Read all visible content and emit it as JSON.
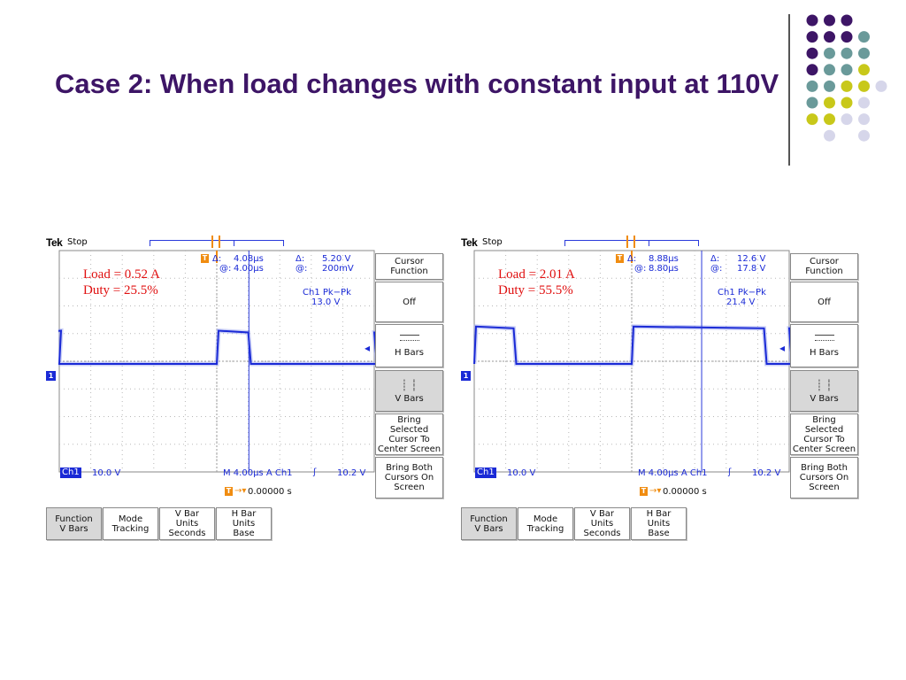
{
  "slide": {
    "title": "Case 2: When load changes with constant input at 110V"
  },
  "colors": {
    "purple": "#3d1566",
    "teal": "#6a9a9a",
    "lime": "#c8c81a",
    "lavender": "#d6d6ea",
    "trace": "#1a2ad6",
    "orange": "#f08c10",
    "red": "#e01010"
  },
  "scopes": [
    {
      "brand": "Tek",
      "state": "Stop",
      "load_line1": "Load = 0.52 A",
      "load_line2": "Duty = 25.5%",
      "delta_label": "Δ:",
      "delta_time": "4.08µs",
      "at_label": "@:",
      "at_time": "4.00µs",
      "delta_label2": "Δ:",
      "delta_volt": "5.20 V",
      "at_label2": "@:",
      "at_volt": "200mV",
      "meas_name": "Ch1 Pk−Pk",
      "meas_value": "13.0 V",
      "ch_badge": "Ch1",
      "ch_scale": "10.0 V",
      "timebase": "M 4.00µs  A  Ch1",
      "trig_slope": "ʃ",
      "trig_level": "10.2 V",
      "trig_pos": "0.00000 s",
      "marker": "1",
      "t_badge": "T",
      "pulses": [
        {
          "rise_us": -27.8,
          "fall_us": -22.8
        },
        {
          "rise_us": 0.0,
          "fall_us": 4.0
        },
        {
          "rise_us": 27.8,
          "fall_us": 32.0
        }
      ],
      "high_div": 1.2,
      "side_menu": [
        {
          "label": "Cursor\nFunction",
          "selected": false
        },
        {
          "label": "Off",
          "selected": false
        },
        {
          "label": "H Bars",
          "selected": false
        },
        {
          "label": "V Bars",
          "selected": true
        },
        {
          "label": "Bring\nSelected\nCursor To\nCenter Screen",
          "selected": false
        },
        {
          "label": "Bring Both\nCursors On\nScreen",
          "selected": false
        }
      ],
      "bottom_menu": [
        {
          "label": "Function\nV Bars",
          "selected": true
        },
        {
          "label": "Mode\nTracking",
          "selected": false
        },
        {
          "label": "V Bar\nUnits\nSeconds",
          "selected": false
        },
        {
          "label": "H Bar\nUnits\nBase",
          "selected": false
        }
      ]
    },
    {
      "brand": "Tek",
      "state": "Stop",
      "load_line1": "Load = 2.01 A",
      "load_line2": "Duty = 55.5%",
      "delta_label": "Δ:",
      "delta_time": "8.88µs",
      "at_label": "@:",
      "at_time": "8.80µs",
      "delta_label2": "Δ:",
      "delta_volt": "12.6 V",
      "at_label2": "@:",
      "at_volt": "17.8 V",
      "meas_name": "Ch1 Pk−Pk",
      "meas_value": "21.4 V",
      "ch_badge": "Ch1",
      "ch_scale": "10.0 V",
      "timebase": "M 4.00µs  A  Ch1",
      "trig_slope": "ʃ",
      "trig_level": "10.2 V",
      "trig_pos": "0.00000 s",
      "marker": "1",
      "t_badge": "T",
      "pulses": [
        {
          "rise_us": -29.0,
          "fall_us": -15.0
        },
        {
          "rise_us": 0.0,
          "fall_us": 16.8
        },
        {
          "rise_us": 28.2,
          "fall_us": 36.0
        }
      ],
      "high_div": 1.35,
      "side_menu": [
        {
          "label": "Cursor\nFunction",
          "selected": false
        },
        {
          "label": "Off",
          "selected": false
        },
        {
          "label": "H Bars",
          "selected": false
        },
        {
          "label": "V Bars",
          "selected": true
        },
        {
          "label": "Bring\nSelected\nCursor To\nCenter Screen",
          "selected": false
        },
        {
          "label": "Bring Both\nCursors On\nScreen",
          "selected": false
        }
      ],
      "bottom_menu": [
        {
          "label": "Function\nV Bars",
          "selected": true
        },
        {
          "label": "Mode\nTracking",
          "selected": false
        },
        {
          "label": "V Bar\nUnits\nSeconds",
          "selected": false
        },
        {
          "label": "H Bar\nUnits\nBase",
          "selected": false
        }
      ]
    }
  ]
}
